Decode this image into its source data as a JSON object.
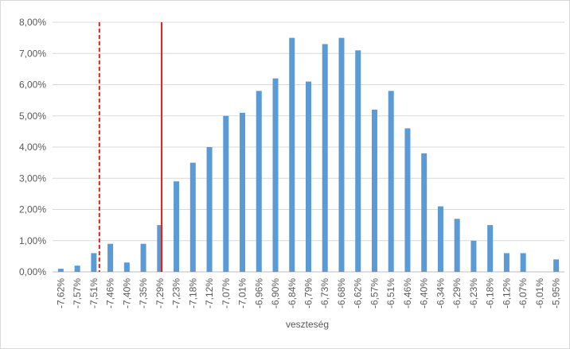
{
  "chart_data": {
    "type": "bar",
    "x_label": "veszteség",
    "categories": [
      "-7,62%",
      "-7,57%",
      "-7,51%",
      "-7,46%",
      "-7,40%",
      "-7,35%",
      "-7,29%",
      "-7,23%",
      "-7,18%",
      "-7,12%",
      "-7,07%",
      "-7,01%",
      "-6,96%",
      "-6,90%",
      "-6,84%",
      "-6,79%",
      "-6,73%",
      "-6,68%",
      "-6,62%",
      "-6,57%",
      "-6,51%",
      "-6,46%",
      "-6,40%",
      "-6,34%",
      "-6,29%",
      "-6,23%",
      "-6,18%",
      "-6,12%",
      "-6,07%",
      "-6,01%",
      "-5,95%"
    ],
    "values": [
      0.1,
      0.2,
      0.6,
      0.9,
      0.3,
      0.9,
      1.5,
      2.9,
      3.5,
      4.0,
      5.0,
      5.1,
      5.8,
      6.2,
      7.5,
      6.1,
      7.3,
      7.5,
      7.1,
      5.2,
      5.8,
      4.6,
      3.8,
      2.1,
      1.7,
      1.0,
      1.5,
      0.6,
      0.6,
      0,
      0.4
    ],
    "color": "#5b9bd5",
    "xlim": [
      -7.62,
      -5.95
    ],
    "ylim": [
      0,
      8
    ],
    "yticks": [
      {
        "value": 0,
        "label": "0,00%"
      },
      {
        "value": 1,
        "label": "1,00%"
      },
      {
        "value": 2,
        "label": "2,00%"
      },
      {
        "value": 3,
        "label": "3,00%"
      },
      {
        "value": 4,
        "label": "4,00%"
      },
      {
        "value": 5,
        "label": "5,00%"
      },
      {
        "value": 6,
        "label": "6,00%"
      },
      {
        "value": 7,
        "label": "7,00%"
      },
      {
        "value": 8,
        "label": "8,00%"
      }
    ],
    "grid": true,
    "vlines": [
      {
        "x": -7.49,
        "color": "#e02020",
        "style": "dashed"
      },
      {
        "x": -7.28,
        "color": "#e02020",
        "style": "solid"
      }
    ]
  }
}
